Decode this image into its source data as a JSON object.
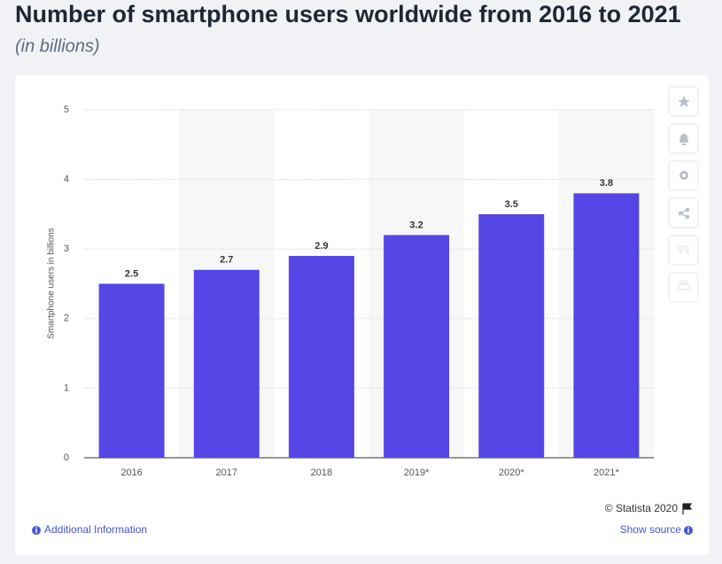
{
  "chart_data": {
    "type": "bar",
    "title": "Number of smartphone users worldwide from 2016 to 2021",
    "subtitle": "(in billions)",
    "y_label": "Smartphone users in billions",
    "categories": [
      "2016",
      "2017",
      "2018",
      "2019*",
      "2020*",
      "2021*"
    ],
    "values": [
      2.5,
      2.7,
      2.9,
      3.2,
      3.5,
      3.8
    ],
    "color": "#5546e6",
    "ylim": [
      0,
      5
    ],
    "yticks": [
      0,
      1,
      2,
      3,
      4,
      5
    ],
    "grid": true
  },
  "footer": {
    "copyright": "© Statista 2020",
    "additional_info": "Additional Information",
    "show_source": "Show source"
  }
}
